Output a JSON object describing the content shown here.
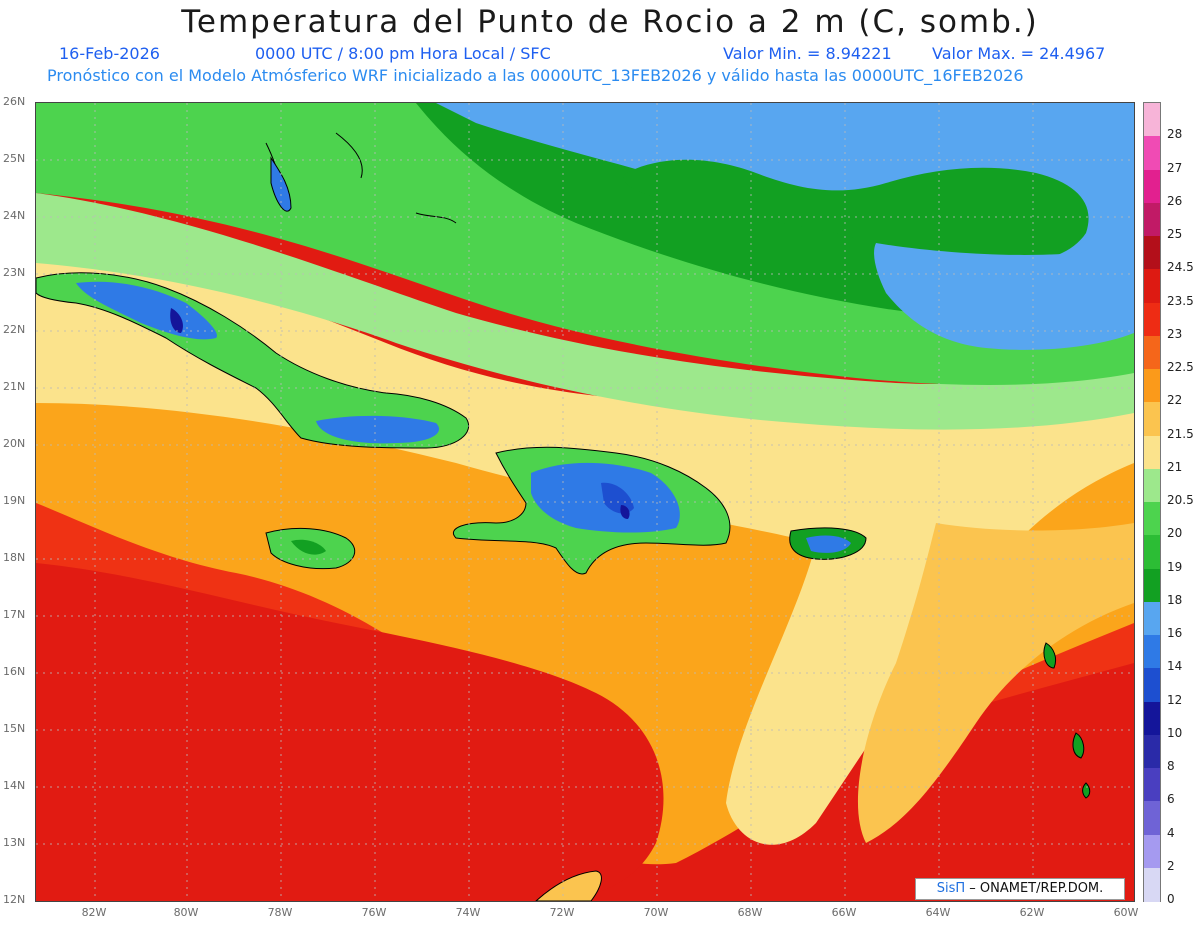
{
  "header": {
    "title": "Temperatura del Punto de Rocio a 2 m (C, somb.)",
    "date": "16-Feb-2026",
    "time_info": "0000 UTC / 8:00 pm Hora Local / SFC",
    "min_label": "Valor Min. = 8.94221",
    "max_label": "Valor Max. = 24.4967",
    "subtitle": "Pronóstico con el Modelo Atmósferico WRF inicializado a las 0000UTC_13FEB2026 y válido hasta las  0000UTC_16FEB2026"
  },
  "map": {
    "lat_labels": [
      "26N",
      "25N",
      "24N",
      "23N",
      "22N",
      "21N",
      "20N",
      "19N",
      "18N",
      "17N",
      "16N",
      "15N",
      "14N",
      "13N",
      "12N"
    ],
    "lon_labels": [
      "82W",
      "80W",
      "78W",
      "76W",
      "74W",
      "72W",
      "70W",
      "68W",
      "66W",
      "64W",
      "62W",
      "60W"
    ],
    "field_colors": {
      "deep_red": "#e11b12",
      "red": "#ef3214",
      "orange_red": "#f5661a",
      "orange": "#fba51b",
      "light_orange": "#fbc44f",
      "yellow": "#fbe38c",
      "light_green": "#9de88c",
      "green": "#4dd34e",
      "dark_green": "#12a022",
      "light_blue": "#58a6f0",
      "blue": "#2f7ae6",
      "dark_blue": "#1d4fd0",
      "navy": "#14159a"
    }
  },
  "colorbar": {
    "labels": [
      "28",
      "27",
      "26",
      "25",
      "24.5",
      "23.5",
      "23",
      "22.5",
      "22",
      "21.5",
      "21",
      "20.5",
      "20",
      "19",
      "18",
      "16",
      "14",
      "12",
      "10",
      "8",
      "6",
      "4",
      "2",
      "0"
    ],
    "colors": [
      "#f7b4d8",
      "#f04bb4",
      "#e2208f",
      "#c11a66",
      "#b30f1a",
      "#dd1a12",
      "#ee2c14",
      "#f5661a",
      "#fb9a1a",
      "#fbc44f",
      "#fbe38c",
      "#9de88c",
      "#4dd34e",
      "#2cbd35",
      "#12a022",
      "#58a6f0",
      "#2f7ae6",
      "#1d4fd0",
      "#14159a",
      "#2a2aa8",
      "#4a3fc0",
      "#6f63d6",
      "#a59af0",
      "#d8d8f4"
    ]
  },
  "credit": {
    "brand": "SisΠ",
    "text": "– ONAMET/REP.DOM."
  }
}
